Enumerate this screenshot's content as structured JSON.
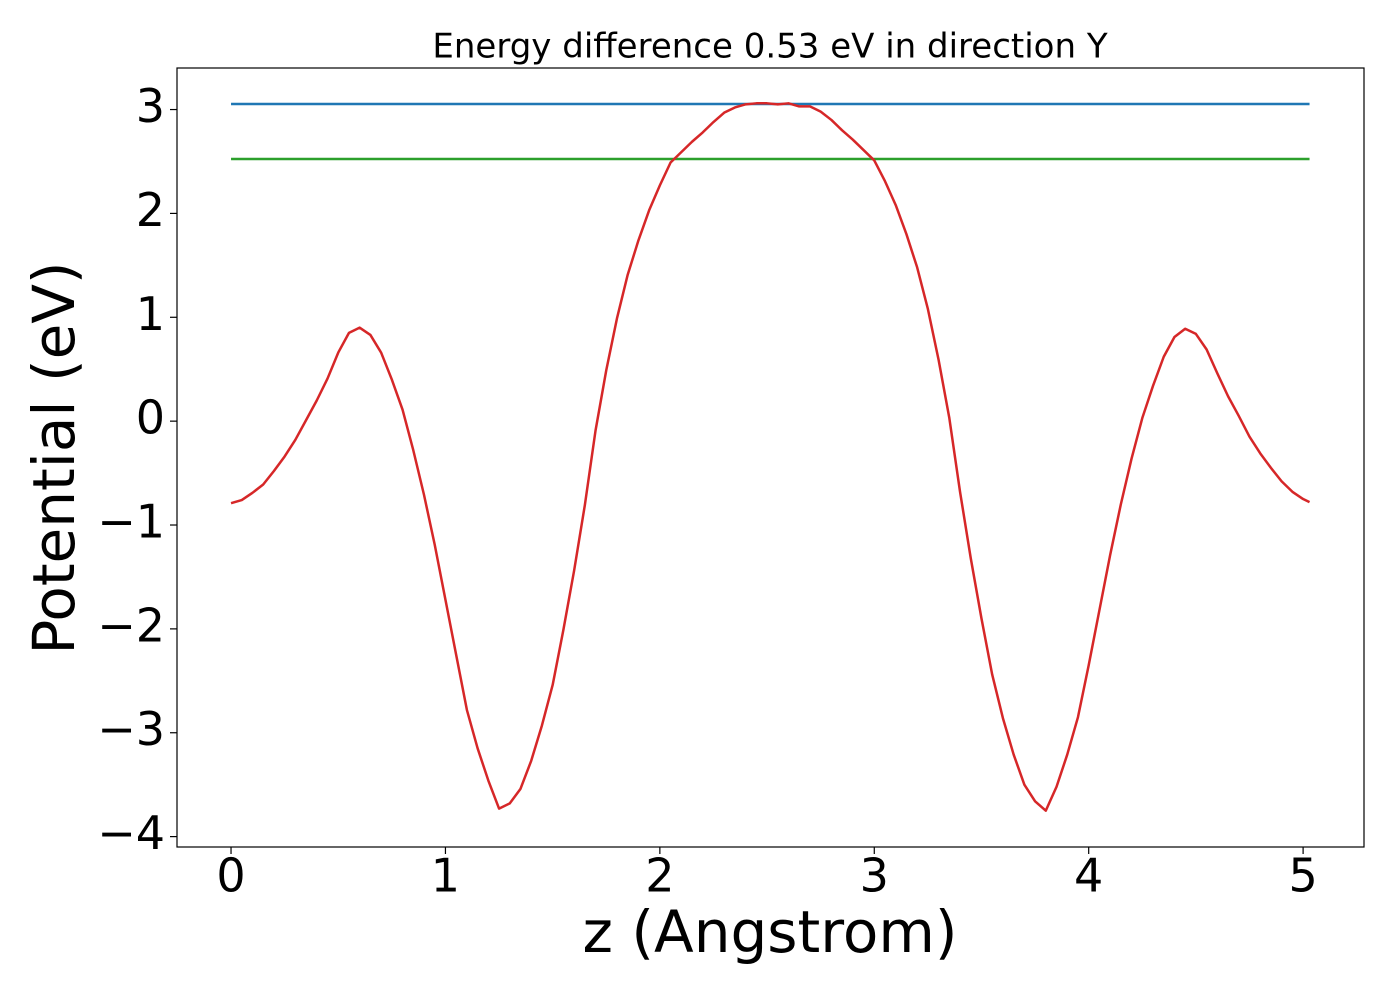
{
  "chart_data": {
    "type": "line",
    "title": "Energy difference 0.53 eV in direction Y",
    "xlabel": "z (Angstrom)",
    "ylabel": "Potential (eV)",
    "xlim": [
      -0.252,
      5.284
    ],
    "ylim": [
      -4.1,
      3.4
    ],
    "xticks": [
      0,
      1,
      2,
      3,
      4,
      5
    ],
    "yticks": [
      {
        "value": -4,
        "label": "−4"
      },
      {
        "value": -3,
        "label": "−3"
      },
      {
        "value": -2,
        "label": "−2"
      },
      {
        "value": -1,
        "label": "−1"
      },
      0,
      1,
      2,
      3
    ],
    "grid": false,
    "series": [
      {
        "color": "#1f77b4",
        "x": [
          0,
          5.03
        ],
        "values": [
          3.054,
          3.054
        ]
      },
      {
        "color": "#2ca02c",
        "x": [
          0,
          5.03
        ],
        "values": [
          2.524,
          2.524
        ]
      },
      {
        "color": "#d62728",
        "x": [
          0,
          0.05,
          0.1,
          0.15,
          0.2,
          0.25,
          0.3,
          0.35,
          0.4,
          0.45,
          0.5,
          0.55,
          0.6,
          0.65,
          0.7,
          0.75,
          0.8,
          0.85,
          0.9,
          0.95,
          1.0,
          1.05,
          1.1,
          1.15,
          1.2,
          1.25,
          1.3,
          1.35,
          1.4,
          1.45,
          1.5,
          1.55,
          1.6,
          1.65,
          1.7,
          1.75,
          1.8,
          1.85,
          1.9,
          1.95,
          2.0,
          2.05,
          2.1,
          2.15,
          2.2,
          2.25,
          2.3,
          2.35,
          2.4,
          2.45,
          2.5,
          2.55,
          2.6,
          2.65,
          2.7,
          2.75,
          2.8,
          2.85,
          2.9,
          2.95,
          3.0,
          3.05,
          3.1,
          3.15,
          3.2,
          3.25,
          3.3,
          3.35,
          3.4,
          3.45,
          3.5,
          3.55,
          3.6,
          3.65,
          3.7,
          3.75,
          3.8,
          3.85,
          3.9,
          3.95,
          4.0,
          4.05,
          4.1,
          4.15,
          4.2,
          4.25,
          4.3,
          4.35,
          4.4,
          4.45,
          4.5,
          4.55,
          4.6,
          4.65,
          4.7,
          4.75,
          4.8,
          4.85,
          4.9,
          4.95,
          5.0,
          5.03
        ],
        "values": [
          -0.79,
          -0.76,
          -0.69,
          -0.61,
          -0.48,
          -0.34,
          -0.18,
          0.01,
          0.2,
          0.41,
          0.66,
          0.85,
          0.9,
          0.83,
          0.66,
          0.4,
          0.11,
          -0.28,
          -0.71,
          -1.19,
          -1.72,
          -2.25,
          -2.78,
          -3.15,
          -3.46,
          -3.73,
          -3.68,
          -3.54,
          -3.27,
          -2.93,
          -2.54,
          -2.01,
          -1.44,
          -0.81,
          -0.09,
          0.49,
          0.99,
          1.41,
          1.74,
          2.03,
          2.27,
          2.49,
          2.59,
          2.69,
          2.78,
          2.88,
          2.97,
          3.02,
          3.05,
          3.06,
          3.06,
          3.05,
          3.06,
          3.03,
          3.03,
          2.98,
          2.9,
          2.8,
          2.71,
          2.61,
          2.51,
          2.31,
          2.08,
          1.8,
          1.48,
          1.08,
          0.59,
          0.03,
          -0.68,
          -1.32,
          -1.9,
          -2.44,
          -2.86,
          -3.21,
          -3.5,
          -3.66,
          -3.75,
          -3.52,
          -3.21,
          -2.85,
          -2.35,
          -1.82,
          -1.29,
          -0.8,
          -0.36,
          0.03,
          0.34,
          0.62,
          0.81,
          0.89,
          0.84,
          0.69,
          0.46,
          0.24,
          0.05,
          -0.15,
          -0.31,
          -0.45,
          -0.58,
          -0.68,
          -0.75,
          -0.78
        ]
      }
    ]
  }
}
